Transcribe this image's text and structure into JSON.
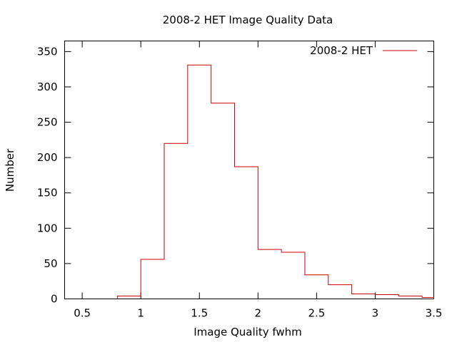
{
  "chart_data": {
    "type": "histogram",
    "title": "2008-2 HET Image Quality Data",
    "xlabel": "Image Quality fwhm",
    "ylabel": "Number",
    "xlim": [
      0.35,
      3.5
    ],
    "ylim": [
      0,
      365
    ],
    "xticks": [
      0.5,
      1,
      1.5,
      2,
      2.5,
      3,
      3.5
    ],
    "xtick_labels": [
      "0.5",
      "1",
      "1.5",
      "2",
      "2.5",
      "3",
      "3.5"
    ],
    "yticks": [
      0,
      50,
      100,
      150,
      200,
      250,
      300,
      350
    ],
    "ytick_labels": [
      "0",
      "50",
      "100",
      "150",
      "200",
      "250",
      "300",
      "350"
    ],
    "legend_position": "top-right",
    "grid": false,
    "series": [
      {
        "name": "2008-2 HET",
        "color": "#cc0000",
        "bins": [
          {
            "x0": 0.8,
            "x1": 1.0,
            "count": 4
          },
          {
            "x0": 1.0,
            "x1": 1.2,
            "count": 56
          },
          {
            "x0": 1.2,
            "x1": 1.4,
            "count": 220
          },
          {
            "x0": 1.4,
            "x1": 1.6,
            "count": 331
          },
          {
            "x0": 1.6,
            "x1": 1.8,
            "count": 277
          },
          {
            "x0": 1.8,
            "x1": 2.0,
            "count": 187
          },
          {
            "x0": 2.0,
            "x1": 2.2,
            "count": 70
          },
          {
            "x0": 2.2,
            "x1": 2.4,
            "count": 66
          },
          {
            "x0": 2.4,
            "x1": 2.6,
            "count": 34
          },
          {
            "x0": 2.6,
            "x1": 2.8,
            "count": 20
          },
          {
            "x0": 2.8,
            "x1": 3.0,
            "count": 7
          },
          {
            "x0": 3.0,
            "x1": 3.2,
            "count": 6
          },
          {
            "x0": 3.2,
            "x1": 3.4,
            "count": 4
          },
          {
            "x0": 3.4,
            "x1": 3.5,
            "count": 2
          }
        ]
      }
    ]
  }
}
